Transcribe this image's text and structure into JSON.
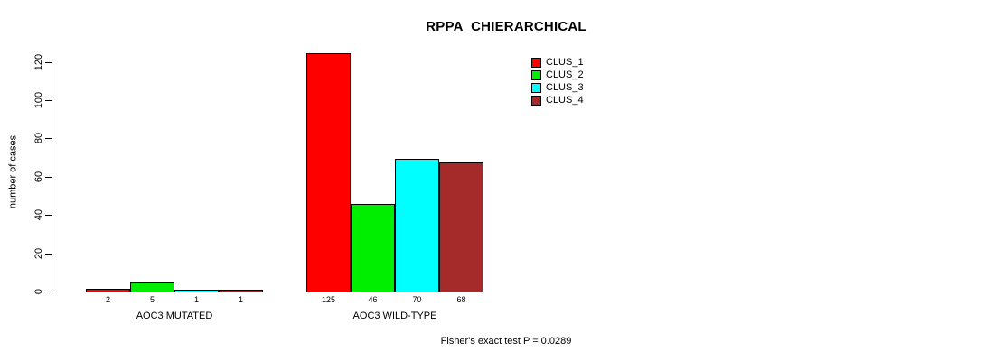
{
  "title": "RPPA_CHIERARCHICAL",
  "footer": "Fisher's exact test P = 0.0289",
  "chart_data": {
    "type": "bar",
    "title": "RPPA_CHIERARCHICAL",
    "xlabel": "",
    "ylabel": "number of cases",
    "ylim": [
      0,
      125
    ],
    "yticks": [
      0,
      20,
      40,
      60,
      80,
      100,
      120
    ],
    "grid": false,
    "legend_position": "top-right",
    "categories": [
      "AOC3 MUTATED",
      "AOC3 WILD-TYPE"
    ],
    "series": [
      {
        "name": "CLUS_1",
        "color": "#FF0000",
        "values": [
          2,
          125
        ]
      },
      {
        "name": "CLUS_2",
        "color": "#00EE00",
        "values": [
          5,
          46
        ]
      },
      {
        "name": "CLUS_3",
        "color": "#00FFFF",
        "values": [
          1,
          70
        ]
      },
      {
        "name": "CLUS_4",
        "color": "#A52A2A",
        "values": [
          1,
          68
        ]
      }
    ],
    "bar_value_labels": [
      [
        "2",
        "5",
        "1",
        "1"
      ],
      [
        "125",
        "46",
        "70",
        "68"
      ]
    ],
    "annotation": "Fisher's exact test P = 0.0289"
  }
}
